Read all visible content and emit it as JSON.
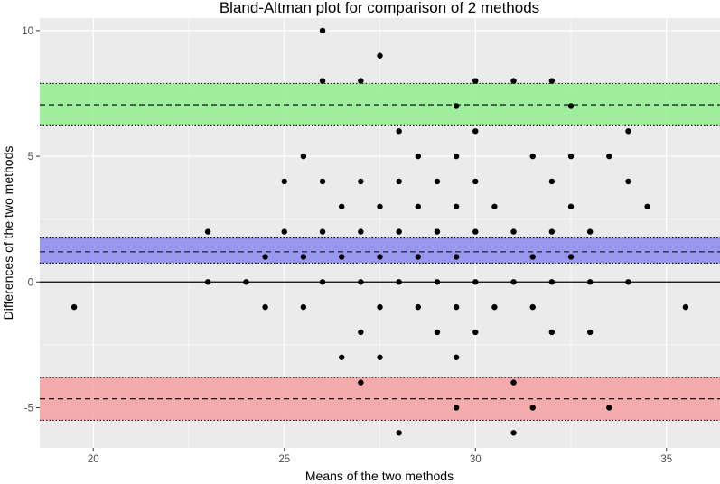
{
  "chart_data": {
    "type": "scatter",
    "title": "Bland-Altman plot for comparison of 2 methods",
    "xlabel": "Means of the two methods",
    "ylabel": "Differences of the two methods",
    "xlim": [
      18.6,
      36.4
    ],
    "ylim": [
      -6.6,
      10.5
    ],
    "x_ticks": [
      20,
      25,
      30,
      35
    ],
    "y_ticks": [
      -5,
      0,
      5,
      10
    ],
    "grid": true,
    "background_color": "#ebebeb",
    "grid_color": "#ffffff",
    "point_color": "#000000",
    "zero_line": 0,
    "bands": [
      {
        "name": "upper limit of agreement",
        "value": 7.05,
        "ci": [
          6.25,
          7.9
        ],
        "fill": "#90ee90",
        "line_color": "#000000"
      },
      {
        "name": "mean difference",
        "value": 1.2,
        "ci": [
          0.75,
          1.75
        ],
        "fill": "#8a8af0",
        "line_color": "#000000"
      },
      {
        "name": "lower limit of agreement",
        "value": -4.65,
        "ci": [
          -5.5,
          -3.8
        ],
        "fill": "#f4a0a0",
        "line_color": "#000000"
      }
    ],
    "points": [
      {
        "x": 19.5,
        "y": -1
      },
      {
        "x": 23,
        "y": 2
      },
      {
        "x": 23,
        "y": 0
      },
      {
        "x": 24,
        "y": 0
      },
      {
        "x": 24.5,
        "y": 1
      },
      {
        "x": 24.5,
        "y": -1
      },
      {
        "x": 25,
        "y": 4
      },
      {
        "x": 25,
        "y": 2
      },
      {
        "x": 25.5,
        "y": 5
      },
      {
        "x": 25.5,
        "y": 1
      },
      {
        "x": 25.5,
        "y": -1
      },
      {
        "x": 26,
        "y": 10
      },
      {
        "x": 26,
        "y": 8
      },
      {
        "x": 26,
        "y": 4
      },
      {
        "x": 26,
        "y": 2
      },
      {
        "x": 26,
        "y": 0
      },
      {
        "x": 26.5,
        "y": 3
      },
      {
        "x": 26.5,
        "y": 1
      },
      {
        "x": 26.5,
        "y": -3
      },
      {
        "x": 27,
        "y": 8
      },
      {
        "x": 27,
        "y": 4
      },
      {
        "x": 27,
        "y": 2
      },
      {
        "x": 27,
        "y": 0
      },
      {
        "x": 27,
        "y": -2
      },
      {
        "x": 27,
        "y": -4
      },
      {
        "x": 27.5,
        "y": 9
      },
      {
        "x": 27.5,
        "y": 3
      },
      {
        "x": 27.5,
        "y": 1
      },
      {
        "x": 27.5,
        "y": -1
      },
      {
        "x": 27.5,
        "y": -3
      },
      {
        "x": 28,
        "y": 6
      },
      {
        "x": 28,
        "y": 4
      },
      {
        "x": 28,
        "y": 2
      },
      {
        "x": 28,
        "y": 0
      },
      {
        "x": 28,
        "y": -6
      },
      {
        "x": 28.5,
        "y": 5
      },
      {
        "x": 28.5,
        "y": 3
      },
      {
        "x": 28.5,
        "y": 1
      },
      {
        "x": 28.5,
        "y": -1
      },
      {
        "x": 29,
        "y": 4
      },
      {
        "x": 29,
        "y": 2
      },
      {
        "x": 29,
        "y": 0
      },
      {
        "x": 29,
        "y": -2
      },
      {
        "x": 29.5,
        "y": 7
      },
      {
        "x": 29.5,
        "y": 5
      },
      {
        "x": 29.5,
        "y": 3
      },
      {
        "x": 29.5,
        "y": 1
      },
      {
        "x": 29.5,
        "y": -1
      },
      {
        "x": 29.5,
        "y": -3
      },
      {
        "x": 29.5,
        "y": -5
      },
      {
        "x": 30,
        "y": 8
      },
      {
        "x": 30,
        "y": 6
      },
      {
        "x": 30,
        "y": 4
      },
      {
        "x": 30,
        "y": 2
      },
      {
        "x": 30,
        "y": 0
      },
      {
        "x": 30,
        "y": -2
      },
      {
        "x": 30.5,
        "y": 3
      },
      {
        "x": 30.5,
        "y": -1
      },
      {
        "x": 31,
        "y": 8
      },
      {
        "x": 31,
        "y": 2
      },
      {
        "x": 31,
        "y": 0
      },
      {
        "x": 31,
        "y": -4
      },
      {
        "x": 31,
        "y": -6
      },
      {
        "x": 31.5,
        "y": 5
      },
      {
        "x": 31.5,
        "y": 1
      },
      {
        "x": 31.5,
        "y": -1
      },
      {
        "x": 31.5,
        "y": -5
      },
      {
        "x": 32,
        "y": 8
      },
      {
        "x": 32,
        "y": 4
      },
      {
        "x": 32,
        "y": 2
      },
      {
        "x": 32,
        "y": 0
      },
      {
        "x": 32,
        "y": -2
      },
      {
        "x": 32.5,
        "y": 7
      },
      {
        "x": 32.5,
        "y": 5
      },
      {
        "x": 32.5,
        "y": 3
      },
      {
        "x": 32.5,
        "y": 1
      },
      {
        "x": 33,
        "y": 2
      },
      {
        "x": 33,
        "y": 0
      },
      {
        "x": 33,
        "y": -2
      },
      {
        "x": 33.5,
        "y": 5
      },
      {
        "x": 33.5,
        "y": -5
      },
      {
        "x": 34,
        "y": 6
      },
      {
        "x": 34,
        "y": 4
      },
      {
        "x": 34,
        "y": 0
      },
      {
        "x": 34.5,
        "y": 3
      },
      {
        "x": 35.5,
        "y": -1
      }
    ]
  }
}
